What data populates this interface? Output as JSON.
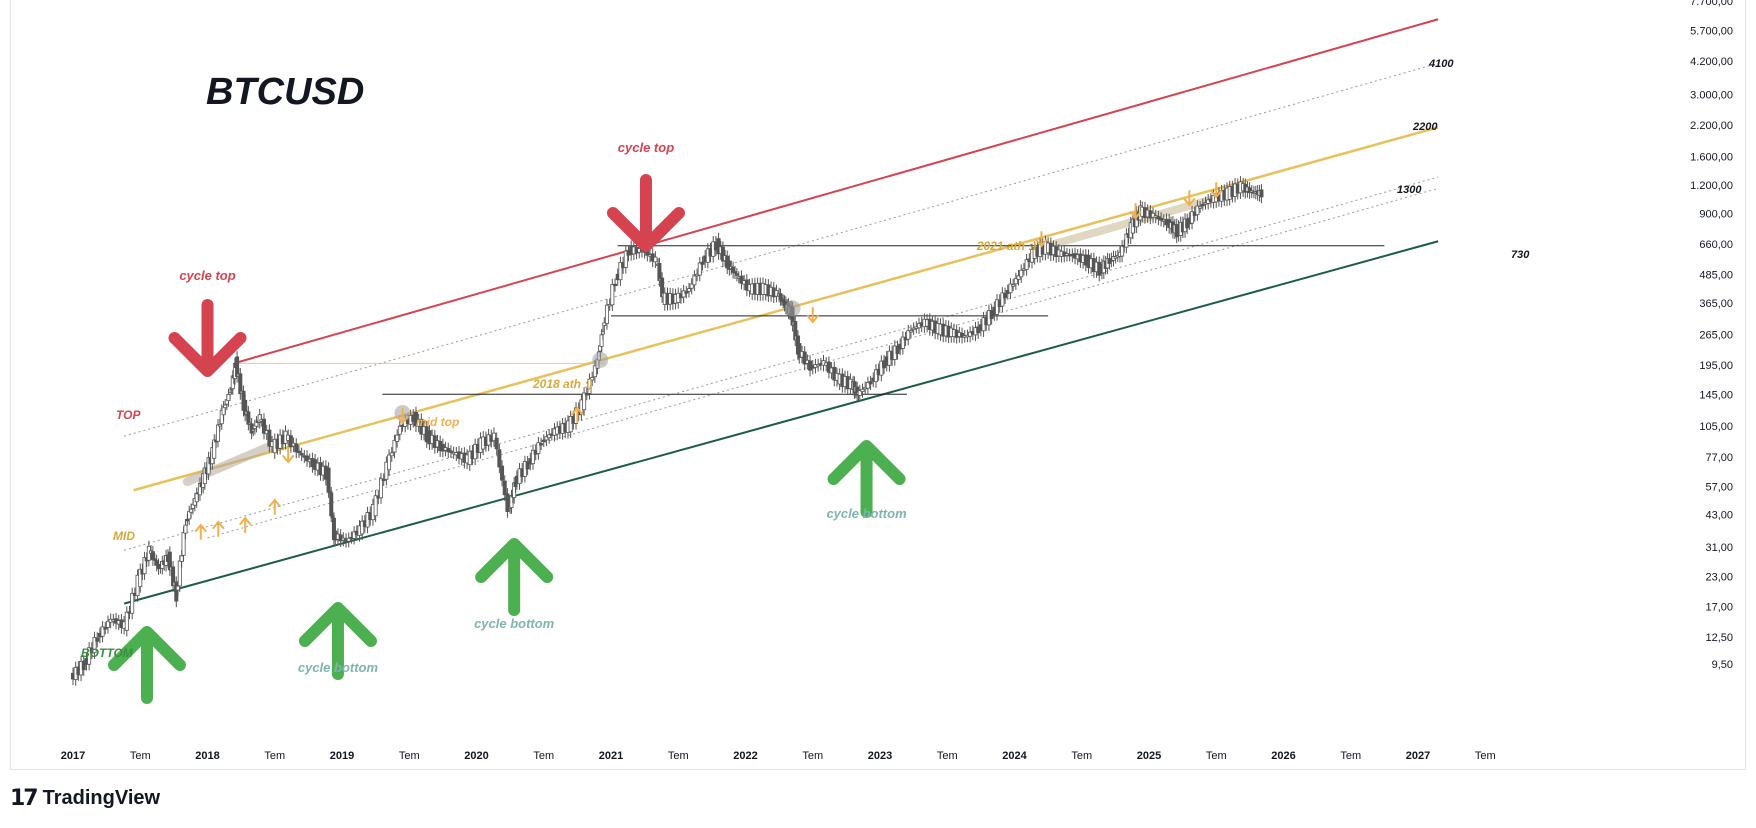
{
  "brand": {
    "name": "TradingView",
    "logo_icon": "tv-logo-icon"
  },
  "colors": {
    "top": "#d64350",
    "mid": "#e8c15c",
    "bottom": "#1d5e42",
    "green_arrow": "#4caf50",
    "red_arrow": "#d64350",
    "orange": "#f0b04f",
    "candle": "#555555",
    "dotted": "#9a9a9a",
    "hline": "#222222",
    "label_green": "#7fb5ae"
  },
  "chart_data": {
    "type": "candlestick",
    "title": "BTCUSD",
    "y_scale": "log",
    "yticks": [
      "7.700,00",
      "5.700,00",
      "4.200,00",
      "3.000,00",
      "2.200,00",
      "1.600,00",
      "1.200,00",
      "900,00",
      "660,00",
      "485,00",
      "365,00",
      "265,00",
      "195,00",
      "145,00",
      "105,00",
      "77,00",
      "57,00",
      "43,00",
      "31,00",
      "23,00",
      "17,00",
      "12,50",
      "9,50"
    ],
    "xticks": [
      "2017",
      "Tem",
      "2018",
      "Tem",
      "2019",
      "Tem",
      "2020",
      "Tem",
      "2021",
      "Tem",
      "2022",
      "Tem",
      "2023",
      "Tem",
      "2024",
      "Tem",
      "2025",
      "Tem",
      "2026",
      "Tem",
      "2027",
      "Tem"
    ],
    "channel_labels": {
      "top": "TOP",
      "mid": "MID",
      "bottom": "BOTTOM"
    },
    "level_labels": [
      "4100",
      "2200",
      "1300",
      "730"
    ],
    "annotations": {
      "cycle_top": "cycle top",
      "cycle_bottom": "cycle bottom",
      "mid_top": "mid top",
      "ath_2018": "2018 ath :)",
      "ath_2021": "2021 ath :)"
    },
    "price_path": [
      [
        2017.0,
        8.3
      ],
      [
        2017.1,
        9.5
      ],
      [
        2017.2,
        12.5
      ],
      [
        2017.3,
        15
      ],
      [
        2017.4,
        14
      ],
      [
        2017.5,
        22
      ],
      [
        2017.58,
        30
      ],
      [
        2017.65,
        25
      ],
      [
        2017.72,
        28
      ],
      [
        2017.78,
        19
      ],
      [
        2017.85,
        40
      ],
      [
        2017.92,
        50
      ],
      [
        2017.98,
        62
      ],
      [
        2018.05,
        80
      ],
      [
        2018.12,
        120
      ],
      [
        2018.18,
        150
      ],
      [
        2018.22,
        200
      ],
      [
        2018.28,
        130
      ],
      [
        2018.34,
        100
      ],
      [
        2018.4,
        115
      ],
      [
        2018.5,
        85
      ],
      [
        2018.6,
        95
      ],
      [
        2018.7,
        80
      ],
      [
        2018.8,
        72
      ],
      [
        2018.9,
        65
      ],
      [
        2018.95,
        35
      ],
      [
        2019.05,
        33
      ],
      [
        2019.15,
        37
      ],
      [
        2019.25,
        45
      ],
      [
        2019.35,
        70
      ],
      [
        2019.45,
        105
      ],
      [
        2019.55,
        115
      ],
      [
        2019.65,
        95
      ],
      [
        2019.75,
        85
      ],
      [
        2019.85,
        80
      ],
      [
        2019.95,
        75
      ],
      [
        2020.05,
        88
      ],
      [
        2020.15,
        95
      ],
      [
        2020.25,
        45
      ],
      [
        2020.3,
        60
      ],
      [
        2020.4,
        72
      ],
      [
        2020.5,
        90
      ],
      [
        2020.6,
        100
      ],
      [
        2020.7,
        105
      ],
      [
        2020.8,
        130
      ],
      [
        2020.9,
        190
      ],
      [
        2020.95,
        280
      ],
      [
        2021.05,
        460
      ],
      [
        2021.15,
        620
      ],
      [
        2021.25,
        620
      ],
      [
        2021.35,
        560
      ],
      [
        2021.4,
        380
      ],
      [
        2021.5,
        380
      ],
      [
        2021.6,
        420
      ],
      [
        2021.7,
        560
      ],
      [
        2021.8,
        660
      ],
      [
        2021.88,
        540
      ],
      [
        2021.95,
        480
      ],
      [
        2022.05,
        420
      ],
      [
        2022.15,
        420
      ],
      [
        2022.25,
        400
      ],
      [
        2022.3,
        360
      ],
      [
        2022.35,
        330
      ],
      [
        2022.4,
        230
      ],
      [
        2022.5,
        190
      ],
      [
        2022.6,
        200
      ],
      [
        2022.7,
        170
      ],
      [
        2022.8,
        160
      ],
      [
        2022.85,
        145
      ],
      [
        2022.95,
        165
      ],
      [
        2023.05,
        200
      ],
      [
        2023.15,
        230
      ],
      [
        2023.25,
        280
      ],
      [
        2023.35,
        300
      ],
      [
        2023.45,
        280
      ],
      [
        2023.55,
        270
      ],
      [
        2023.65,
        260
      ],
      [
        2023.75,
        280
      ],
      [
        2023.85,
        330
      ],
      [
        2023.95,
        400
      ],
      [
        2024.05,
        480
      ],
      [
        2024.15,
        600
      ],
      [
        2024.25,
        640
      ],
      [
        2024.35,
        600
      ],
      [
        2024.45,
        590
      ],
      [
        2024.55,
        560
      ],
      [
        2024.65,
        510
      ],
      [
        2024.72,
        560
      ],
      [
        2024.8,
        600
      ],
      [
        2024.88,
        780
      ],
      [
        2024.95,
        920
      ],
      [
        2025.05,
        880
      ],
      [
        2025.15,
        820
      ],
      [
        2025.22,
        750
      ],
      [
        2025.3,
        820
      ],
      [
        2025.4,
        980
      ],
      [
        2025.5,
        1050
      ],
      [
        2025.6,
        1100
      ],
      [
        2025.7,
        1180
      ],
      [
        2025.78,
        1120
      ],
      [
        2025.85,
        1100
      ]
    ],
    "channel": {
      "top": [
        [
          2018.22,
          200
        ],
        [
          2027.15,
          6400
        ]
      ],
      "mid": [
        [
          2017.45,
          55
        ],
        [
          2027.15,
          2150
        ]
      ],
      "bottom": [
        [
          2017.38,
          17.5
        ],
        [
          2027.15,
          680
        ]
      ],
      "dotted": [
        [
          [
            2017.38,
            95
          ],
          [
            2027.15,
            4100
          ]
        ],
        [
          [
            2017.38,
            30
          ],
          [
            2027.15,
            1300
          ]
        ],
        [
          [
            2018.0,
            34
          ],
          [
            2027.15,
            1160
          ]
        ]
      ]
    },
    "hlines": [
      {
        "y": 650,
        "x1": 2021.05,
        "x2": 2026.75
      },
      {
        "y": 320,
        "x1": 2021.0,
        "x2": 2024.25
      },
      {
        "y": 145,
        "x1": 2019.3,
        "x2": 2023.2
      }
    ],
    "thin_orange_line": {
      "y": 198,
      "x1": 2018.22,
      "x2": 2020.95
    }
  }
}
